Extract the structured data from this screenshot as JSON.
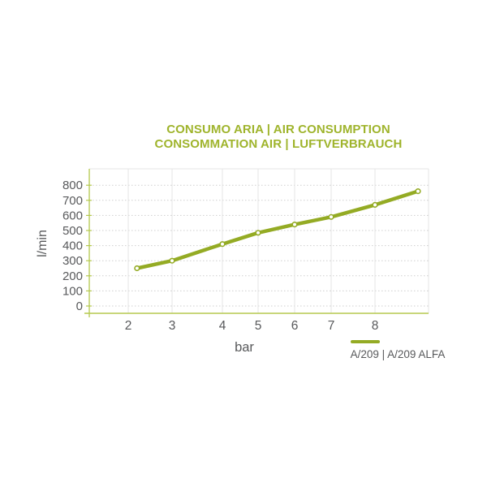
{
  "chart_data": {
    "type": "line",
    "title_line1": "CONSUMO ARIA | AIR CONSUMPTION",
    "title_line2": "CONSOMMATION AIR | LUFTVERBRAUCH",
    "xlabel": "bar",
    "ylabel": "l/min",
    "x_ticks": [
      2,
      3,
      4,
      5,
      6,
      7,
      8
    ],
    "y_ticks": [
      0,
      100,
      200,
      300,
      400,
      500,
      600,
      700,
      800
    ],
    "xlim": [
      1.05,
      9.25
    ],
    "ylim": [
      0,
      890
    ],
    "grid": true,
    "legend_position": "bottom-right",
    "series": [
      {
        "name": "A/209 | A/209 ALFA",
        "color": "#94ab24",
        "marker": "open-circle",
        "x": [
          2.2,
          3,
          4,
          5,
          6,
          7,
          8,
          9
        ],
        "y": [
          250,
          300,
          410,
          485,
          540,
          590,
          670,
          760
        ]
      }
    ]
  },
  "colors": {
    "accent_green": "#94ab24",
    "title_green": "#9fb42c",
    "axis_green": "#b5c94e",
    "text_gray": "#58595b",
    "gridline": "#cfcfcf",
    "border": "#e4e4e4",
    "background": "#ffffff"
  }
}
